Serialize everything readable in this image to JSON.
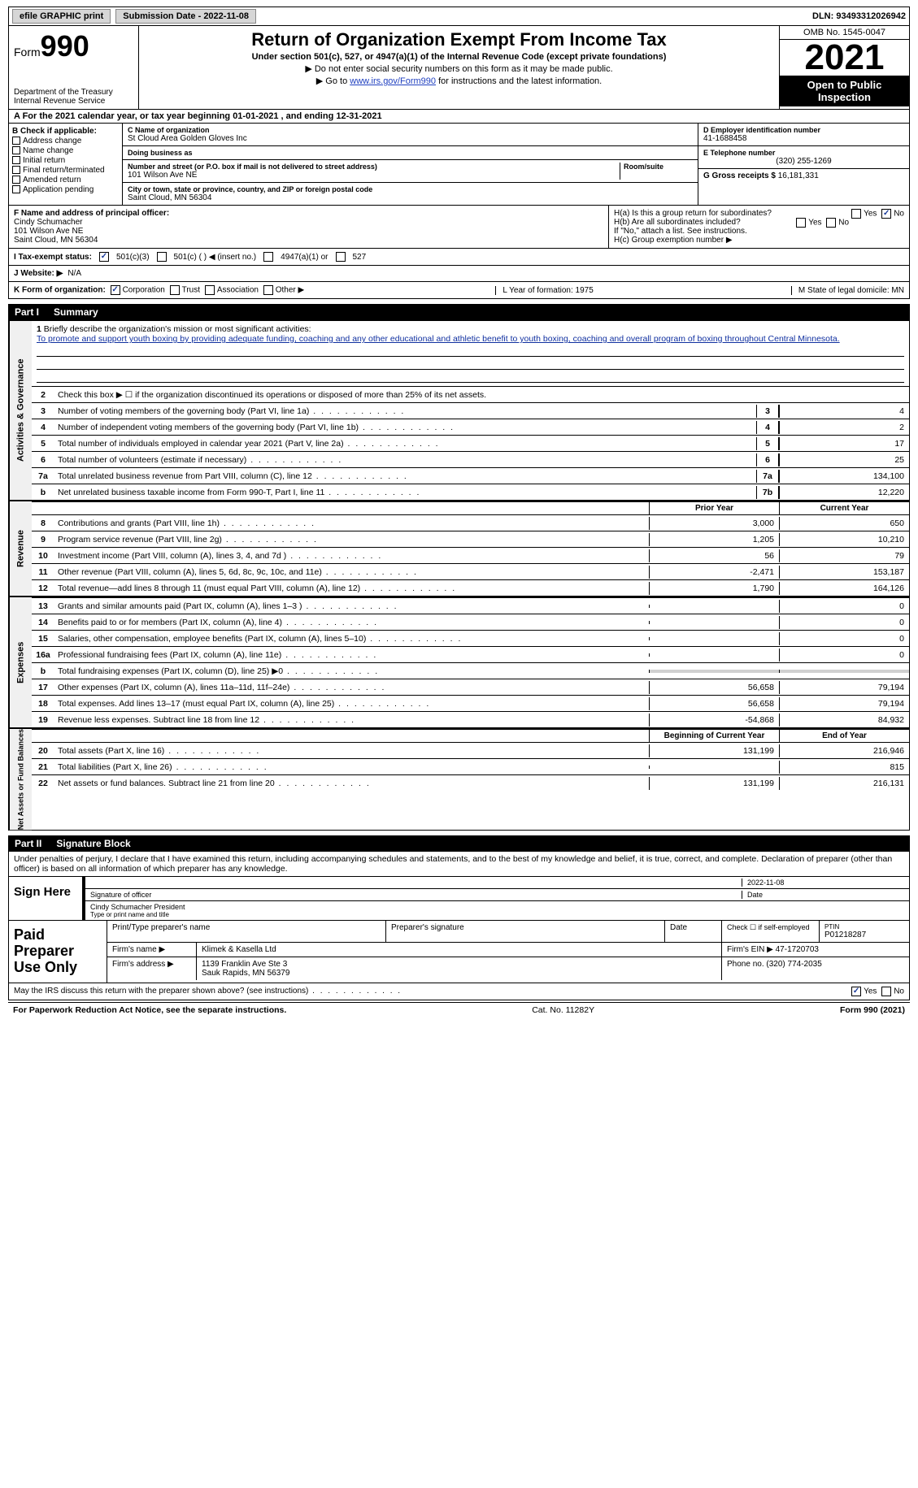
{
  "topbar": {
    "efile": "efile GRAPHIC print",
    "submission": "Submission Date - 2022-11-08",
    "dln_label": "DLN:",
    "dln": "93493312026942"
  },
  "header": {
    "form_prefix": "Form",
    "form_num": "990",
    "dept": "Department of the Treasury",
    "irs": "Internal Revenue Service",
    "title": "Return of Organization Exempt From Income Tax",
    "subtitle": "Under section 501(c), 527, or 4947(a)(1) of the Internal Revenue Code (except private foundations)",
    "note1": "▶ Do not enter social security numbers on this form as it may be made public.",
    "note2_pre": "▶ Go to ",
    "note2_link": "www.irs.gov/Form990",
    "note2_post": " for instructions and the latest information.",
    "omb": "OMB No. 1545-0047",
    "year": "2021",
    "inspection": "Open to Public Inspection"
  },
  "row_a": "A For the 2021 calendar year, or tax year beginning 01-01-2021   , and ending 12-31-2021",
  "section_b": {
    "heading": "B Check if applicable:",
    "items": [
      "Address change",
      "Name change",
      "Initial return",
      "Final return/terminated",
      "Amended return",
      "Application pending"
    ]
  },
  "section_c": {
    "name_lbl": "C Name of organization",
    "name": "St Cloud Area Golden Gloves Inc",
    "dba_lbl": "Doing business as",
    "dba": "",
    "street_lbl": "Number and street (or P.O. box if mail is not delivered to street address)",
    "room_lbl": "Room/suite",
    "street": "101 Wilson Ave NE",
    "city_lbl": "City or town, state or province, country, and ZIP or foreign postal code",
    "city": "Saint Cloud, MN  56304"
  },
  "section_d": {
    "ein_lbl": "D Employer identification number",
    "ein": "41-1688458",
    "phone_lbl": "E Telephone number",
    "phone": "(320) 255-1269",
    "gross_lbl": "G Gross receipts $",
    "gross": "16,181,331"
  },
  "section_f": {
    "lbl": "F Name and address of principal officer:",
    "name": "Cindy Schumacher",
    "addr1": "101 Wilson Ave NE",
    "addr2": "Saint Cloud, MN  56304"
  },
  "section_h": {
    "ha": "H(a)  Is this a group return for subordinates?",
    "hb": "H(b)  Are all subordinates included?",
    "hb_note": "If \"No,\" attach a list. See instructions.",
    "hc": "H(c)  Group exemption number ▶",
    "yes": "Yes",
    "no": "No"
  },
  "row_i": {
    "lbl": "I   Tax-exempt status:",
    "opt1": "501(c)(3)",
    "opt2": "501(c) (  ) ◀ (insert no.)",
    "opt3": "4947(a)(1) or",
    "opt4": "527"
  },
  "row_j": {
    "lbl": "J  Website: ▶",
    "val": "N/A"
  },
  "row_k": {
    "lbl": "K Form of organization:",
    "opts": [
      "Corporation",
      "Trust",
      "Association",
      "Other ▶"
    ],
    "l": "L Year of formation: 1975",
    "m": "M State of legal domicile: MN"
  },
  "part1": {
    "num": "Part I",
    "title": "Summary"
  },
  "mission": {
    "num": "1",
    "lbl": "Briefly describe the organization's mission or most significant activities:",
    "text": "To promote and support youth boxing by providing adequate funding, coaching and any other educational and athletic benefit to youth boxing, coaching and overall program of boxing throughout Central Minnesota."
  },
  "line2": {
    "num": "2",
    "text": "Check this box ▶ ☐ if the organization discontinued its operations or disposed of more than 25% of its net assets."
  },
  "sidelabels": {
    "gov": "Activities & Governance",
    "rev": "Revenue",
    "exp": "Expenses",
    "net": "Net Assets or Fund Balances"
  },
  "lines_gov": [
    {
      "n": "3",
      "d": "Number of voting members of the governing body (Part VI, line 1a)",
      "box": "3",
      "v": "4"
    },
    {
      "n": "4",
      "d": "Number of independent voting members of the governing body (Part VI, line 1b)",
      "box": "4",
      "v": "2"
    },
    {
      "n": "5",
      "d": "Total number of individuals employed in calendar year 2021 (Part V, line 2a)",
      "box": "5",
      "v": "17"
    },
    {
      "n": "6",
      "d": "Total number of volunteers (estimate if necessary)",
      "box": "6",
      "v": "25"
    },
    {
      "n": "7a",
      "d": "Total unrelated business revenue from Part VIII, column (C), line 12",
      "box": "7a",
      "v": "134,100"
    },
    {
      "n": "b",
      "d": "Net unrelated business taxable income from Form 990-T, Part I, line 11",
      "box": "7b",
      "v": "12,220"
    }
  ],
  "colhdrs": {
    "prior": "Prior Year",
    "current": "Current Year",
    "boy": "Beginning of Current Year",
    "eoy": "End of Year"
  },
  "lines_rev": [
    {
      "n": "8",
      "d": "Contributions and grants (Part VIII, line 1h)",
      "p": "3,000",
      "c": "650"
    },
    {
      "n": "9",
      "d": "Program service revenue (Part VIII, line 2g)",
      "p": "1,205",
      "c": "10,210"
    },
    {
      "n": "10",
      "d": "Investment income (Part VIII, column (A), lines 3, 4, and 7d )",
      "p": "56",
      "c": "79"
    },
    {
      "n": "11",
      "d": "Other revenue (Part VIII, column (A), lines 5, 6d, 8c, 9c, 10c, and 11e)",
      "p": "-2,471",
      "c": "153,187"
    },
    {
      "n": "12",
      "d": "Total revenue—add lines 8 through 11 (must equal Part VIII, column (A), line 12)",
      "p": "1,790",
      "c": "164,126"
    }
  ],
  "lines_exp": [
    {
      "n": "13",
      "d": "Grants and similar amounts paid (Part IX, column (A), lines 1–3 )",
      "p": "",
      "c": "0"
    },
    {
      "n": "14",
      "d": "Benefits paid to or for members (Part IX, column (A), line 4)",
      "p": "",
      "c": "0"
    },
    {
      "n": "15",
      "d": "Salaries, other compensation, employee benefits (Part IX, column (A), lines 5–10)",
      "p": "",
      "c": "0"
    },
    {
      "n": "16a",
      "d": "Professional fundraising fees (Part IX, column (A), line 11e)",
      "p": "",
      "c": "0"
    },
    {
      "n": "b",
      "d": "Total fundraising expenses (Part IX, column (D), line 25) ▶0",
      "p": "shade",
      "c": "shade"
    },
    {
      "n": "17",
      "d": "Other expenses (Part IX, column (A), lines 11a–11d, 11f–24e)",
      "p": "56,658",
      "c": "79,194"
    },
    {
      "n": "18",
      "d": "Total expenses. Add lines 13–17 (must equal Part IX, column (A), line 25)",
      "p": "56,658",
      "c": "79,194"
    },
    {
      "n": "19",
      "d": "Revenue less expenses. Subtract line 18 from line 12",
      "p": "-54,868",
      "c": "84,932"
    }
  ],
  "lines_net": [
    {
      "n": "20",
      "d": "Total assets (Part X, line 16)",
      "p": "131,199",
      "c": "216,946"
    },
    {
      "n": "21",
      "d": "Total liabilities (Part X, line 26)",
      "p": "",
      "c": "815"
    },
    {
      "n": "22",
      "d": "Net assets or fund balances. Subtract line 21 from line 20",
      "p": "131,199",
      "c": "216,131"
    }
  ],
  "part2": {
    "num": "Part II",
    "title": "Signature Block"
  },
  "sig": {
    "perjury": "Under penalties of perjury, I declare that I have examined this return, including accompanying schedules and statements, and to the best of my knowledge and belief, it is true, correct, and complete. Declaration of preparer (other than officer) is based on all information of which preparer has any knowledge.",
    "sign_here": "Sign Here",
    "sig_officer": "Signature of officer",
    "date": "Date",
    "date_val": "2022-11-08",
    "name_title": "Cindy Schumacher  President",
    "type_name": "Type or print name and title"
  },
  "prep": {
    "label": "Paid Preparer Use Only",
    "r1": {
      "a": "Print/Type preparer's name",
      "b": "Preparer's signature",
      "c": "Date",
      "d_lbl": "Check ☐ if self-employed",
      "e_lbl": "PTIN",
      "e": "P01218287"
    },
    "r2": {
      "a": "Firm's name    ▶",
      "b": "Klimek & Kasella Ltd",
      "c": "Firm's EIN ▶",
      "d": "47-1720703"
    },
    "r3": {
      "a": "Firm's address ▶",
      "b": "1139 Franklin Ave Ste 3",
      "c": "Phone no.",
      "d": "(320) 774-2035"
    },
    "r3b": "Sauk Rapids, MN  56379"
  },
  "discuss": {
    "q": "May the IRS discuss this return with the preparer shown above? (see instructions)",
    "yes": "Yes",
    "no": "No"
  },
  "footer": {
    "left": "For Paperwork Reduction Act Notice, see the separate instructions.",
    "mid": "Cat. No. 11282Y",
    "right": "Form 990 (2021)"
  }
}
